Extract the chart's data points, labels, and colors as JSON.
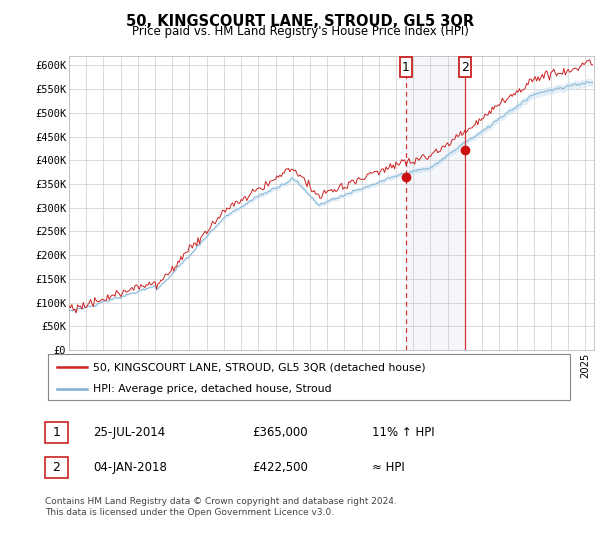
{
  "title": "50, KINGSCOURT LANE, STROUD, GL5 3QR",
  "subtitle": "Price paid vs. HM Land Registry's House Price Index (HPI)",
  "legend_line1": "50, KINGSCOURT LANE, STROUD, GL5 3QR (detached house)",
  "legend_line2": "HPI: Average price, detached house, Stroud",
  "annotation1_date": "25-JUL-2014",
  "annotation1_price": "£365,000",
  "annotation1_note": "11% ↑ HPI",
  "annotation2_date": "04-JAN-2018",
  "annotation2_price": "£422,500",
  "annotation2_note": "≈ HPI",
  "footer": "Contains HM Land Registry data © Crown copyright and database right 2024.\nThis data is licensed under the Open Government Licence v3.0.",
  "sale1_x": 2014.57,
  "sale1_y": 365000,
  "sale2_x": 2018.01,
  "sale2_y": 422500,
  "hpi_line_color": "#7ab0d4",
  "price_color": "#cc2222",
  "sale_marker_color": "#aa1111",
  "ylim_min": 0,
  "ylim_max": 620000,
  "xlim_min": 1995,
  "xlim_max": 2025.5,
  "yticks": [
    0,
    50000,
    100000,
    150000,
    200000,
    250000,
    300000,
    350000,
    400000,
    450000,
    500000,
    550000,
    600000
  ],
  "ytick_labels": [
    "£0",
    "£50K",
    "£100K",
    "£150K",
    "£200K",
    "£250K",
    "£300K",
    "£350K",
    "£400K",
    "£450K",
    "£500K",
    "£550K",
    "£600K"
  ]
}
